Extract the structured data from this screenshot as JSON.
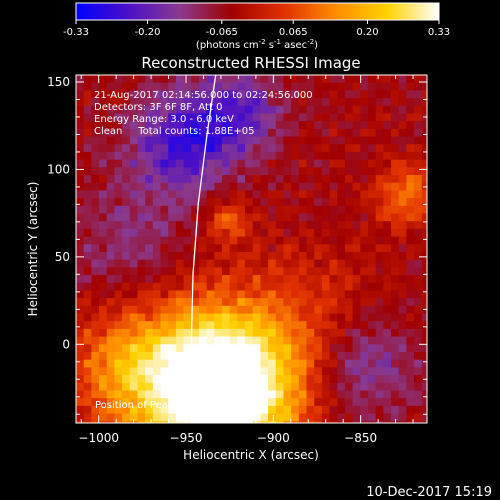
{
  "chart_data": {
    "type": "heatmap",
    "title": "Reconstructed RHESSI Image",
    "colorbar": {
      "tick_labels": [
        "-0.33",
        "-0.20",
        "-0.065",
        "0.065",
        "0.20",
        "0.33"
      ],
      "ticks": [
        -0.33,
        -0.2,
        -0.065,
        0.065,
        0.2,
        0.33
      ],
      "range": [
        -0.33,
        0.33
      ],
      "units_parts": {
        "a": "(photons cm",
        "b": "-2",
        "c": " s",
        "d": "-1",
        "e": " asec",
        "f": "-2",
        "g": ")"
      },
      "colors": [
        "#0000ff",
        "#4b0fc8",
        "#8a3a8f",
        "#a00000",
        "#e03000",
        "#ff8c00",
        "#ffd200",
        "#ffffff"
      ]
    },
    "xlabel": "Heliocentric X (arcsec)",
    "ylabel": "Heliocentric Y (arcsec)",
    "xlim": [
      -1013,
      -812
    ],
    "ylim": [
      -45,
      154
    ],
    "xticks": [
      -1000,
      -950,
      -900,
      -850
    ],
    "xtick_labels": [
      "−1000",
      "−950",
      "−900",
      "−850"
    ],
    "yticks": [
      0,
      50,
      100,
      150
    ],
    "ytick_labels": [
      "0",
      "50",
      "100",
      "150"
    ],
    "annotations": [
      "21-Aug-2017 02:14:56.000 to 02:24:56.000",
      "Detectors: 3F 6F 8F, Att 0",
      "Energy Range: 3.0 - 6.0 keV",
      "Clean     Total counts: 1.88E+05"
    ],
    "peak_label": "Position of Peak = [-928, -24]",
    "sources": [
      {
        "x": -928,
        "y": -24,
        "peak": 0.33,
        "sigma": 28
      },
      {
        "x": -945,
        "y": -20,
        "peak": 0.25,
        "sigma": 35
      },
      {
        "x": -930,
        "y": 73,
        "peak": 0.14,
        "sigma": 9
      },
      {
        "x": -825,
        "y": 88,
        "peak": 0.16,
        "sigma": 13
      },
      {
        "x": -990,
        "y": -10,
        "peak": 0.12,
        "sigma": 22
      },
      {
        "x": -880,
        "y": 20,
        "peak": 0.07,
        "sigma": 28
      },
      {
        "x": -955,
        "y": 118,
        "peak": -0.19,
        "sigma": 20
      },
      {
        "x": -922,
        "y": 135,
        "peak": -0.15,
        "sigma": 18
      },
      {
        "x": -850,
        "y": -10,
        "peak": -0.13,
        "sigma": 20
      },
      {
        "x": -985,
        "y": 60,
        "peak": -0.08,
        "sigma": 25
      }
    ],
    "limb_curve": [
      [
        -947,
        -45
      ],
      [
        -947,
        0
      ],
      [
        -946,
        40
      ],
      [
        -943,
        80
      ],
      [
        -938,
        120
      ],
      [
        -933,
        154
      ]
    ]
  },
  "footer": {
    "date": "10-Dec-2017 15:19"
  }
}
